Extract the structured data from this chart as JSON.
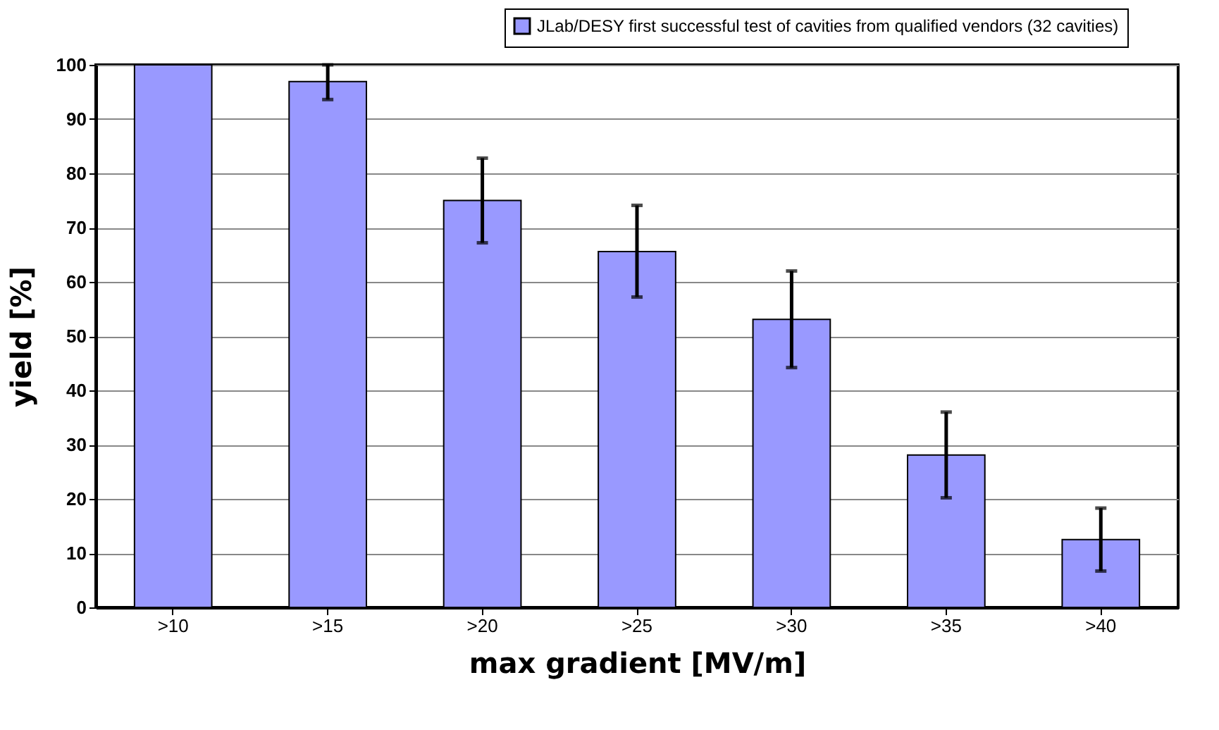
{
  "chart_data": {
    "type": "bar",
    "xlabel": "max gradient [MV/m]",
    "ylabel": "yield [%]",
    "categories": [
      ">10",
      ">15",
      ">20",
      ">25",
      ">30",
      ">35",
      ">40"
    ],
    "series": [
      {
        "name": "JLab/DESY first successful test of cavities from qualified vendors (32 cavities)",
        "color": "#9999ff",
        "values": [
          100,
          96.9,
          75,
          65.6,
          53.1,
          28.1,
          12.5
        ],
        "errors": [
          null,
          [
            93.6,
            100
          ],
          [
            67.2,
            82.8
          ],
          [
            57.2,
            74.1
          ],
          [
            44.2,
            62
          ],
          [
            20.2,
            36
          ],
          [
            6.7,
            18.3
          ]
        ]
      }
    ],
    "ylim": [
      0,
      100
    ],
    "yticks": [
      0,
      10,
      20,
      30,
      40,
      50,
      60,
      70,
      80,
      90,
      100
    ],
    "grid": "y",
    "legend": "top right"
  }
}
